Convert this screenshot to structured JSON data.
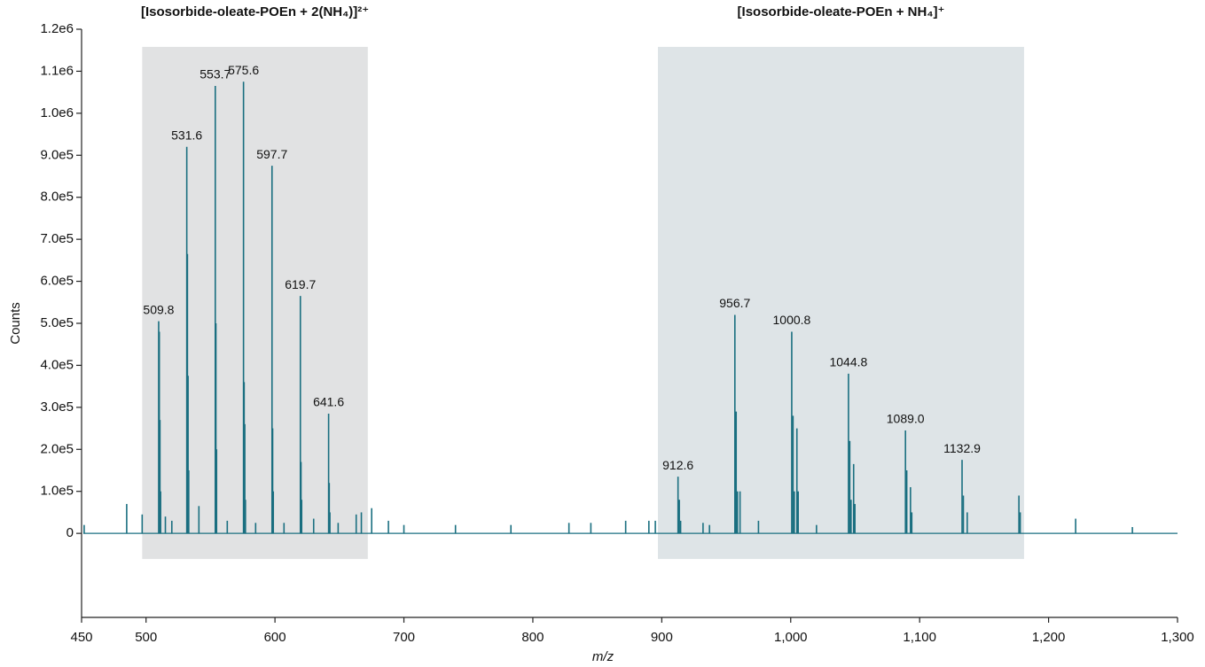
{
  "chart_data": {
    "type": "stick",
    "color": "#1a6f80",
    "x_label": "m/z",
    "y_label": "Counts",
    "xlim": [
      450,
      1300
    ],
    "ylim": [
      -200000,
      1200000
    ],
    "xticks": [
      450,
      500,
      600,
      700,
      800,
      900,
      {
        "value": 1000,
        "label": "1,000"
      },
      {
        "value": 1100,
        "label": "1,100"
      },
      {
        "value": 1200,
        "label": "1,200"
      },
      {
        "value": 1300,
        "label": "1,300"
      }
    ],
    "yticks": [
      0,
      {
        "value": 100000,
        "label": "1.0e5"
      },
      {
        "value": 200000,
        "label": "2.0e5"
      },
      {
        "value": 300000,
        "label": "3.0e5"
      },
      {
        "value": 400000,
        "label": "4.0e5"
      },
      {
        "value": 500000,
        "label": "5.0e5"
      },
      {
        "value": 600000,
        "label": "6.0e5"
      },
      {
        "value": 700000,
        "label": "7.0e5"
      },
      {
        "value": 800000,
        "label": "8.0e5"
      },
      {
        "value": 900000,
        "label": "9.0e5"
      },
      {
        "value": 1000000,
        "label": "1.0e6"
      },
      {
        "value": 1100000,
        "label": "1.1e6"
      },
      {
        "value": 1200000,
        "label": "1.2e6"
      }
    ],
    "regions": [
      {
        "label": "[Isosorbide-oleate-POEn + 2(NH₄)]²⁺",
        "xlim": [
          497,
          672
        ],
        "ylim": [
          -61000,
          1158000
        ],
        "color": "#e1e2e3"
      },
      {
        "label": "[Isosorbide-oleate-POEn + NH₄]⁺",
        "xlim": [
          897,
          1181
        ],
        "ylim": [
          -61000,
          1158000
        ],
        "color": "#dee4e7"
      }
    ],
    "x": [
      452,
      485,
      497,
      509.8,
      510.3,
      510.8,
      511.3,
      515,
      520,
      531.6,
      532.1,
      532.6,
      533.1,
      541,
      553.7,
      554.2,
      554.7,
      563,
      575.6,
      576.1,
      576.6,
      577.1,
      585,
      597.7,
      598.2,
      598.7,
      607,
      619.7,
      620.2,
      620.7,
      630,
      641.6,
      642.1,
      642.6,
      649,
      663,
      667,
      675,
      688,
      700,
      740,
      783,
      828,
      845,
      872,
      890,
      895,
      912.6,
      913.6,
      914.6,
      932,
      937,
      956.7,
      957.7,
      958.7,
      960.7,
      975,
      1000.8,
      1001.8,
      1002.8,
      1004.8,
      1005.8,
      1020,
      1044.8,
      1045.8,
      1046.8,
      1048.8,
      1049.8,
      1089.0,
      1090.0,
      1092.9,
      1093.9,
      1132.9,
      1133.9,
      1136.9,
      1177,
      1178,
      1221,
      1265
    ],
    "values": [
      20000,
      70000,
      45000,
      505000,
      480000,
      270000,
      100000,
      40000,
      30000,
      920000,
      665000,
      375000,
      150000,
      65000,
      1065000,
      500000,
      200000,
      30000,
      1075000,
      360000,
      260000,
      80000,
      25000,
      875000,
      250000,
      100000,
      25000,
      565000,
      170000,
      80000,
      35000,
      285000,
      120000,
      50000,
      25000,
      45000,
      50000,
      60000,
      30000,
      20000,
      20000,
      20000,
      25000,
      25000,
      30000,
      30000,
      30000,
      135000,
      80000,
      30000,
      25000,
      20000,
      520000,
      290000,
      100000,
      100000,
      30000,
      480000,
      280000,
      100000,
      250000,
      100000,
      20000,
      380000,
      220000,
      80000,
      165000,
      70000,
      245000,
      150000,
      110000,
      50000,
      175000,
      90000,
      50000,
      90000,
      50000,
      35000,
      15000
    ],
    "annotations": [
      {
        "text": "509.8",
        "x": 509.8,
        "y": 505000
      },
      {
        "text": "531.6",
        "x": 531.6,
        "y": 920000
      },
      {
        "text": "553.7",
        "x": 553.7,
        "y": 1065000
      },
      {
        "text": "575.6",
        "x": 575.6,
        "y": 1075000
      },
      {
        "text": "597.7",
        "x": 597.7,
        "y": 875000
      },
      {
        "text": "619.7",
        "x": 619.7,
        "y": 565000
      },
      {
        "text": "641.6",
        "x": 641.6,
        "y": 285000
      },
      {
        "text": "912.6",
        "x": 912.6,
        "y": 135000
      },
      {
        "text": "956.7",
        "x": 956.7,
        "y": 520000
      },
      {
        "text": "1000.8",
        "x": 1000.8,
        "y": 480000
      },
      {
        "text": "1044.8",
        "x": 1044.8,
        "y": 380000
      },
      {
        "text": "1089.0",
        "x": 1089.0,
        "y": 245000
      },
      {
        "text": "1132.9",
        "x": 1132.9,
        "y": 175000
      }
    ]
  }
}
